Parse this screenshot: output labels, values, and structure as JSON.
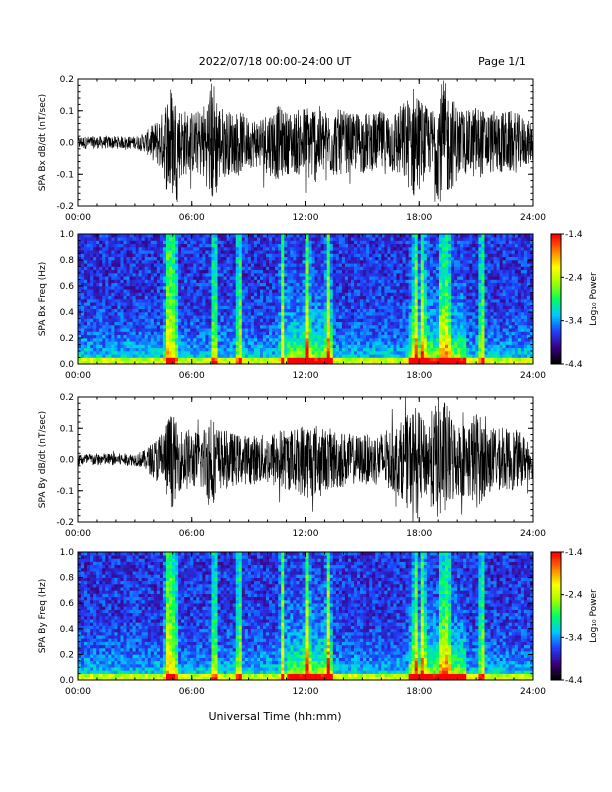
{
  "page": {
    "title": "2022/07/18  00:00-24:00 UT",
    "page_label": "Page 1/1",
    "x_axis_title": "Universal Time (hh:mm)"
  },
  "colorbar": {
    "label": "Log₁₀ Power",
    "ticks": [
      "-1.4",
      "-2.4",
      "-3.4",
      "-4.4"
    ],
    "tick_values": [
      -1.4,
      -2.4,
      -3.4,
      -4.4
    ],
    "range": [
      -4.4,
      -1.4
    ],
    "colormap": [
      "#000000",
      "#3a0080",
      "#2040ff",
      "#00c8ff",
      "#00ff60",
      "#a0ff00",
      "#ffff00",
      "#ff8000",
      "#ff0000"
    ]
  },
  "chart_data": [
    {
      "type": "line",
      "ylabel": "SPA Bx dB/dt (nT/sec)",
      "ylim": [
        -0.2,
        0.2
      ],
      "y_ticks": [
        "0.2",
        "0.1",
        "0.0",
        "-0.1",
        "-0.2"
      ],
      "y_tick_values": [
        0.2,
        0.1,
        0.0,
        -0.1,
        -0.2
      ],
      "x_ticks": [
        "00:00",
        "06:00",
        "12:00",
        "18:00",
        "24:00"
      ],
      "x_tick_values": [
        0,
        6,
        12,
        18,
        24
      ],
      "xlim": [
        0,
        24
      ],
      "series": [
        {
          "x": [
            0,
            1,
            2,
            3,
            3.5,
            4,
            4.5,
            4.8,
            5.0,
            5.3,
            5.8,
            6.3,
            6.8,
            7.0,
            7.2,
            7.5,
            8.0,
            8.5,
            9,
            9.5,
            10,
            10.5,
            11,
            11.5,
            12,
            12.5,
            13,
            13.5,
            14,
            14.5,
            15,
            15.5,
            16,
            16.5,
            17,
            17.5,
            17.8,
            18,
            18.3,
            18.6,
            19,
            19.3,
            19.6,
            20,
            20.5,
            21,
            21.5,
            22,
            22.5,
            23,
            23.5,
            24
          ],
          "y": [
            0.02,
            0.02,
            0.02,
            0.02,
            0.03,
            0.06,
            0.1,
            0.2,
            0.18,
            0.12,
            0.1,
            0.1,
            0.14,
            0.2,
            0.2,
            0.12,
            0.1,
            0.1,
            0.08,
            0.08,
            0.1,
            0.12,
            0.1,
            0.1,
            0.12,
            0.13,
            0.1,
            0.11,
            0.1,
            0.09,
            0.1,
            0.09,
            0.1,
            0.1,
            0.12,
            0.15,
            0.2,
            0.15,
            0.12,
            0.1,
            0.18,
            0.2,
            0.16,
            0.12,
            0.1,
            0.12,
            0.1,
            0.1,
            0.1,
            0.1,
            0.08,
            0.06
          ],
          "envelope": "amplitude"
        }
      ]
    },
    {
      "type": "heatmap",
      "ylabel": "SPA Bx Freq (Hz)",
      "ylim": [
        0.0,
        1.0
      ],
      "y_ticks": [
        "1.0",
        "0.8",
        "0.6",
        "0.4",
        "0.2",
        "0.0"
      ],
      "y_tick_values": [
        1.0,
        0.8,
        0.6,
        0.4,
        0.2,
        0.0
      ],
      "x_ticks": [
        "00:00",
        "06:00",
        "12:00",
        "18:00",
        "24:00"
      ],
      "x_tick_values": [
        0,
        6,
        12,
        18,
        24
      ],
      "xlim": [
        0,
        24
      ],
      "zlim": [
        -4.4,
        -1.4
      ],
      "activity_bursts": [
        4.7,
        4.9,
        5.1,
        7.2,
        8.5,
        10.8,
        12.1,
        13.2,
        17.8,
        18.2,
        19.2,
        19.5,
        21.3
      ],
      "broad_activity": [
        [
          11,
          13.5
        ],
        [
          17.5,
          20.5
        ]
      ]
    },
    {
      "type": "line",
      "ylabel": "SPA By dB/dt (nT/sec)",
      "ylim": [
        -0.2,
        0.2
      ],
      "y_ticks": [
        "0.2",
        "0.1",
        "0.0",
        "-0.1",
        "-0.2"
      ],
      "y_tick_values": [
        0.2,
        0.1,
        0.0,
        -0.1,
        -0.2
      ],
      "x_ticks": [
        "00:00",
        "06:00",
        "12:00",
        "18:00",
        "24:00"
      ],
      "x_tick_values": [
        0,
        6,
        12,
        18,
        24
      ],
      "xlim": [
        0,
        24
      ],
      "series": [
        {
          "x": [
            0,
            1,
            2,
            3,
            3.5,
            4,
            4.5,
            4.8,
            5.0,
            5.3,
            5.8,
            6.3,
            6.8,
            7.0,
            7.2,
            7.5,
            8.0,
            8.5,
            9,
            9.5,
            10,
            10.5,
            11,
            11.5,
            12,
            12.5,
            13,
            13.5,
            14,
            14.5,
            15,
            15.5,
            16,
            16.5,
            17,
            17.5,
            17.8,
            18,
            18.3,
            18.6,
            19,
            19.3,
            19.6,
            20,
            20.5,
            21,
            21.5,
            22,
            22.5,
            23,
            23.5,
            24
          ],
          "y": [
            0.02,
            0.02,
            0.02,
            0.02,
            0.03,
            0.06,
            0.1,
            0.15,
            0.15,
            0.1,
            0.1,
            0.09,
            0.12,
            0.2,
            0.12,
            0.1,
            0.09,
            0.08,
            0.08,
            0.08,
            0.08,
            0.1,
            0.1,
            0.1,
            0.13,
            0.12,
            0.1,
            0.1,
            0.09,
            0.08,
            0.08,
            0.08,
            0.09,
            0.1,
            0.12,
            0.15,
            0.18,
            0.15,
            0.12,
            0.15,
            0.2,
            0.2,
            0.16,
            0.12,
            0.12,
            0.16,
            0.12,
            0.1,
            0.1,
            0.1,
            0.08,
            0.06
          ],
          "envelope": "amplitude"
        }
      ]
    },
    {
      "type": "heatmap",
      "ylabel": "SPA By Freq (Hz)",
      "ylim": [
        0.0,
        1.0
      ],
      "y_ticks": [
        "1.0",
        "0.8",
        "0.6",
        "0.4",
        "0.2",
        "0.0"
      ],
      "y_tick_values": [
        1.0,
        0.8,
        0.6,
        0.4,
        0.2,
        0.0
      ],
      "x_ticks": [
        "00:00",
        "06:00",
        "12:00",
        "18:00",
        "24:00"
      ],
      "x_tick_values": [
        0,
        6,
        12,
        18,
        24
      ],
      "xlim": [
        0,
        24
      ],
      "zlim": [
        -4.4,
        -1.4
      ],
      "activity_bursts": [
        4.7,
        4.9,
        5.1,
        7.2,
        8.5,
        10.8,
        12.1,
        13.2,
        17.8,
        18.2,
        19.2,
        19.5,
        21.3
      ],
      "broad_activity": [
        [
          11,
          13.5
        ],
        [
          17.5,
          20.5
        ]
      ]
    }
  ]
}
